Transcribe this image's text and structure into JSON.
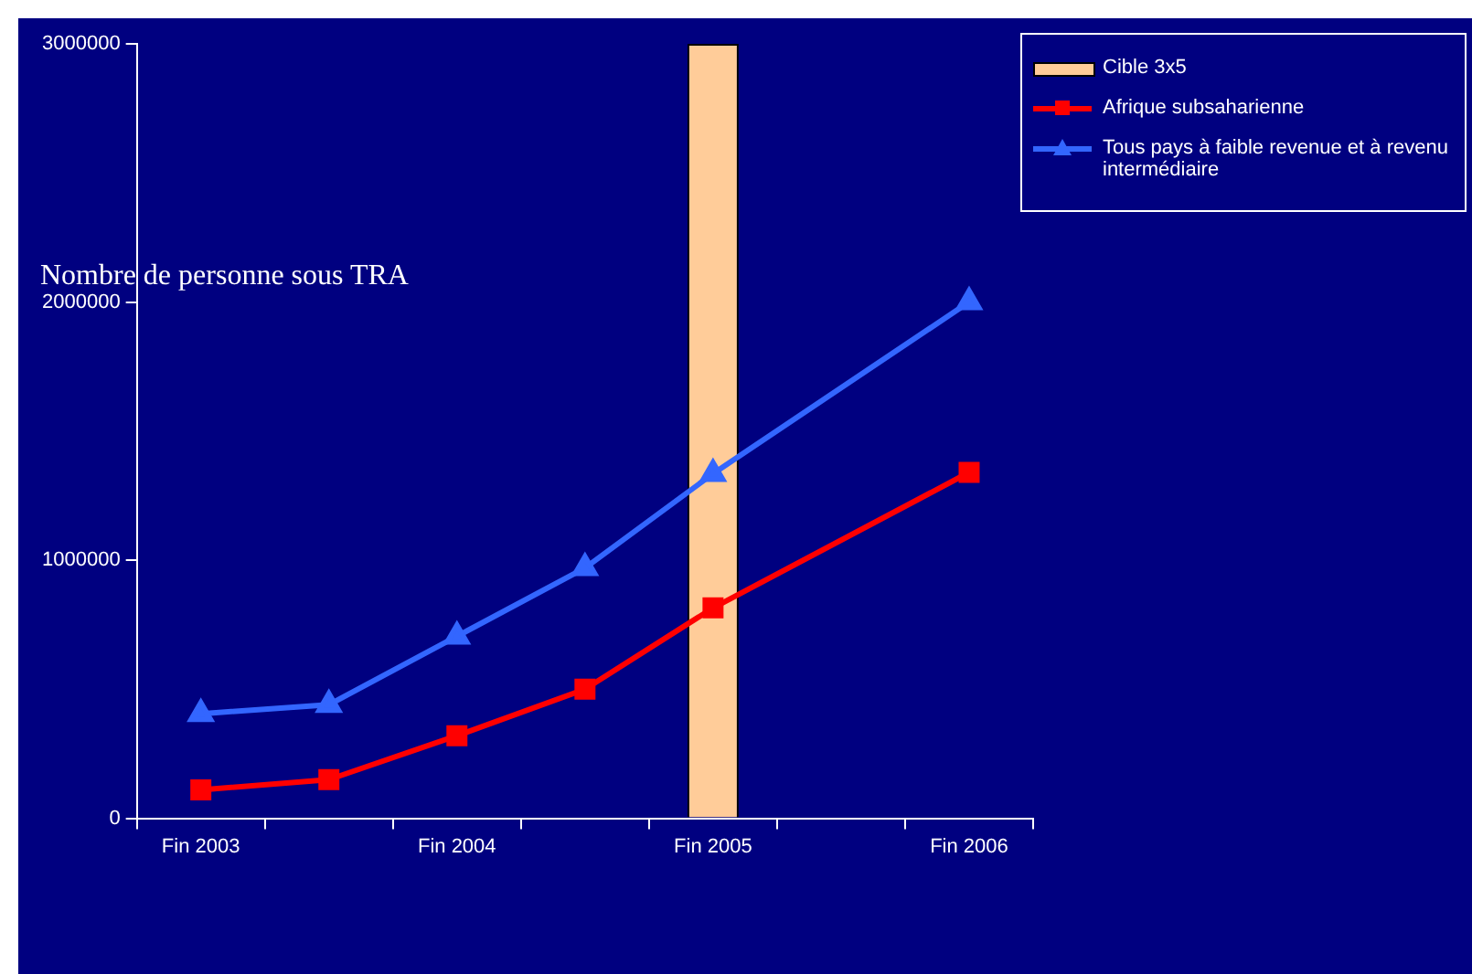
{
  "chart_data": {
    "type": "line",
    "ylabel": "Nombre de personne sous TRA",
    "categories": [
      "Fin 2003",
      null,
      "Fin 2004",
      null,
      "Fin 2005",
      null,
      "Fin 2006"
    ],
    "ylim": [
      0,
      3000000
    ],
    "yticks": [
      0,
      1000000,
      2000000,
      3000000
    ],
    "grid": false,
    "legend": "top right",
    "series": [
      {
        "name": "Cible 3x5",
        "type": "bar",
        "color": "#ffcc99",
        "values": [
          null,
          null,
          null,
          null,
          3000000,
          null,
          null
        ]
      },
      {
        "name": "Afrique subsaharienne",
        "color": "#ff0000",
        "marker": "square",
        "values": [
          110000,
          150000,
          320000,
          500000,
          815000,
          null,
          1340000
        ]
      },
      {
        "name": "Tous pays à faible revenue et à revenu intermédiaire",
        "color": "#3366ff",
        "marker": "triangle",
        "values": [
          405000,
          440000,
          705000,
          970000,
          1335000,
          null,
          2000000
        ]
      }
    ]
  }
}
